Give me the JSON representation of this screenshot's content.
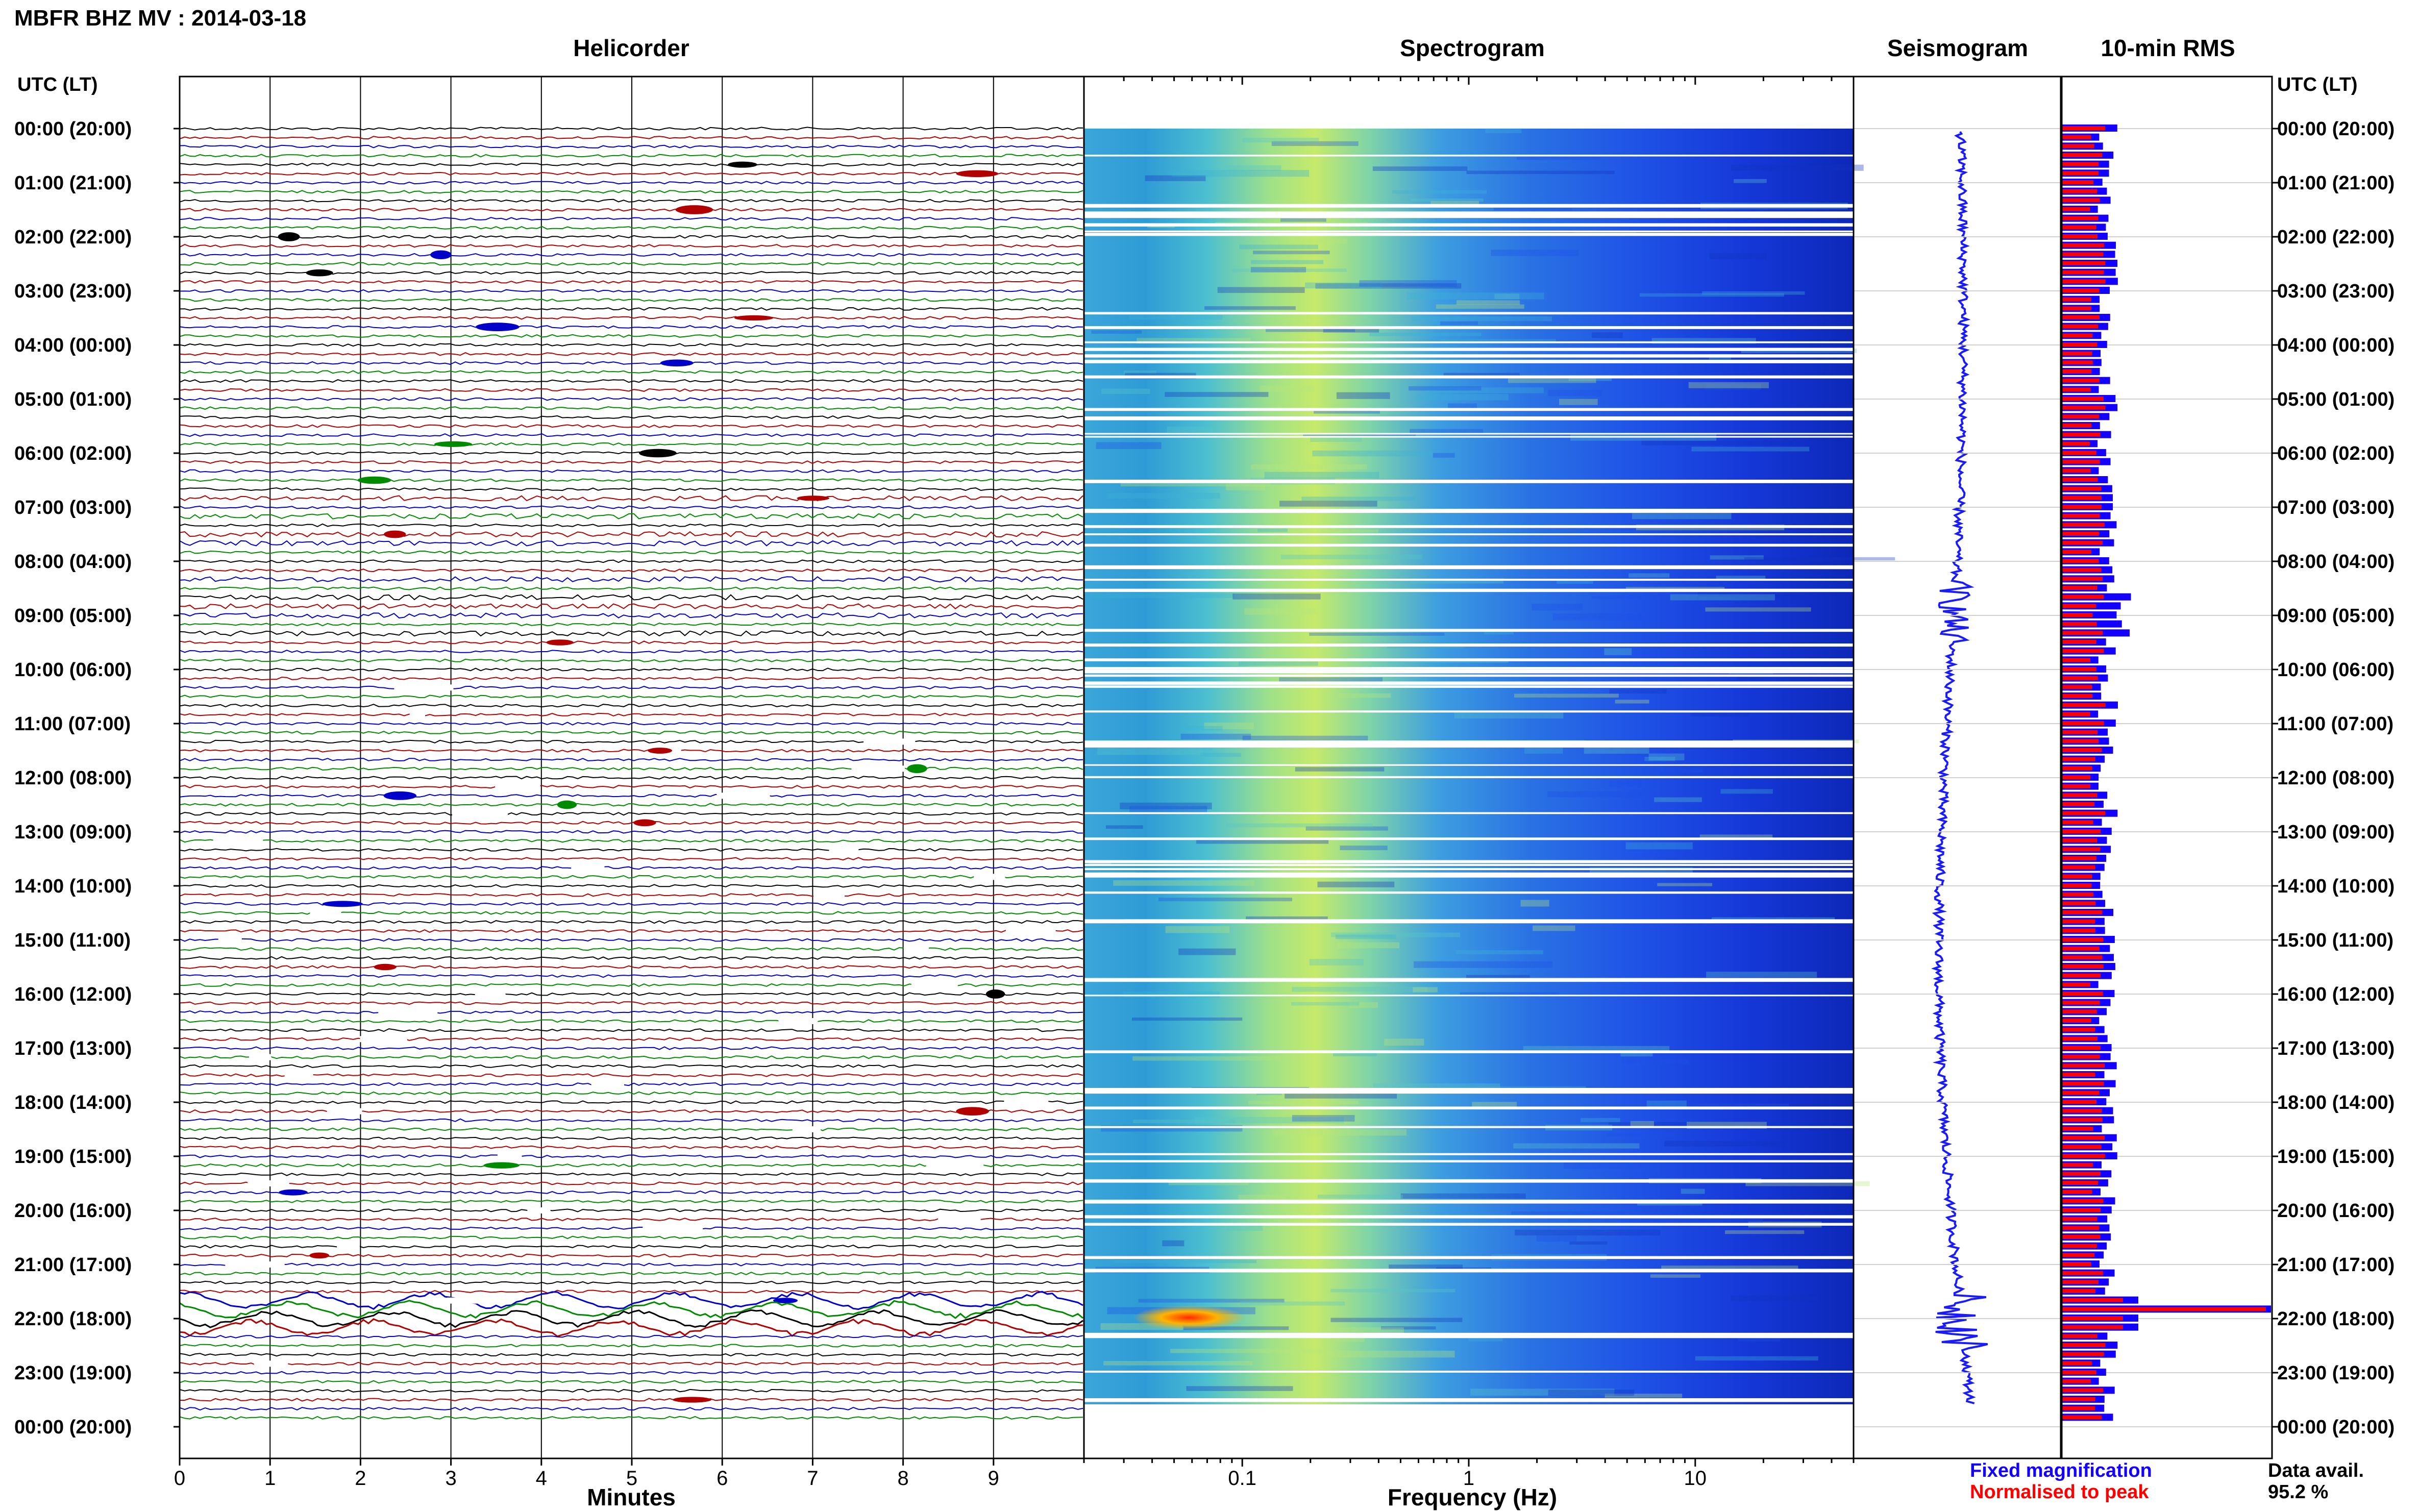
{
  "header": {
    "station_title": "MBFR BHZ MV : 2014-03-18"
  },
  "panels": {
    "helicorder": "Helicorder",
    "spectrogram": "Spectrogram",
    "seismogram": "Seismogram",
    "rms": "10-min RMS"
  },
  "y_axis": {
    "title_left": "UTC (LT)",
    "title_right": "UTC (LT)",
    "hour_labels": [
      "00:00 (20:00)",
      "01:00 (21:00)",
      "02:00 (22:00)",
      "03:00 (23:00)",
      "04:00 (00:00)",
      "05:00 (01:00)",
      "06:00 (02:00)",
      "07:00 (03:00)",
      "08:00 (04:00)",
      "09:00 (05:00)",
      "10:00 (06:00)",
      "11:00 (07:00)",
      "12:00 (08:00)",
      "13:00 (09:00)",
      "14:00 (10:00)",
      "15:00 (11:00)",
      "16:00 (12:00)",
      "17:00 (13:00)",
      "18:00 (14:00)",
      "19:00 (15:00)",
      "20:00 (16:00)",
      "21:00 (17:00)",
      "22:00 (18:00)",
      "23:00 (19:00)",
      "00:00 (20:00)"
    ]
  },
  "x_axes": {
    "minutes_label": "Minutes",
    "minutes_ticks": [
      "0",
      "1",
      "2",
      "3",
      "4",
      "5",
      "6",
      "7",
      "8",
      "9"
    ],
    "frequency_label": "Frequency (Hz)",
    "frequency_ticks": [
      "0.1",
      "1",
      "10"
    ]
  },
  "legend": {
    "fixed": "Fixed magnification",
    "normalised": "Normalised to peak",
    "fixed_color": "#1400ff",
    "normalised_color": "#ff0000"
  },
  "footer": {
    "data_avail_label": "Data avail.",
    "data_avail_value": "95.2 %"
  },
  "colors": {
    "trace_cycle": [
      "#000000",
      "#b00000",
      "#0000c8",
      "#008a00"
    ],
    "rms_fixed": "#1400ff",
    "rms_norm": "#ff0000",
    "seismogram": "#1a1aff"
  },
  "chart_data": [
    {
      "type": "line",
      "name": "helicorder",
      "x_unit": "minutes",
      "xlim": [
        0,
        10
      ],
      "rows_per_hour": 6,
      "row_minutes": 10,
      "event_window_utc": [
        "21:40",
        "22:20"
      ]
    },
    {
      "type": "heatmap",
      "name": "spectrogram",
      "x_scale": "log",
      "xlim_hz": [
        0.02,
        50
      ],
      "peak_band_hz": [
        0.15,
        0.6
      ],
      "event_peak_utc": "21:50",
      "event_peak_band_hz": [
        0.04,
        0.1
      ]
    },
    {
      "type": "line",
      "name": "seismogram",
      "event_utc": [
        "09:00",
        "21:50"
      ]
    },
    {
      "type": "bar",
      "name": "10-min RMS",
      "orientation": "horizontal",
      "series": [
        {
          "name": "Fixed magnification"
        },
        {
          "name": "Normalised to peak"
        }
      ],
      "peak_utc": "21:50",
      "data_availability_percent": 95.2
    }
  ]
}
